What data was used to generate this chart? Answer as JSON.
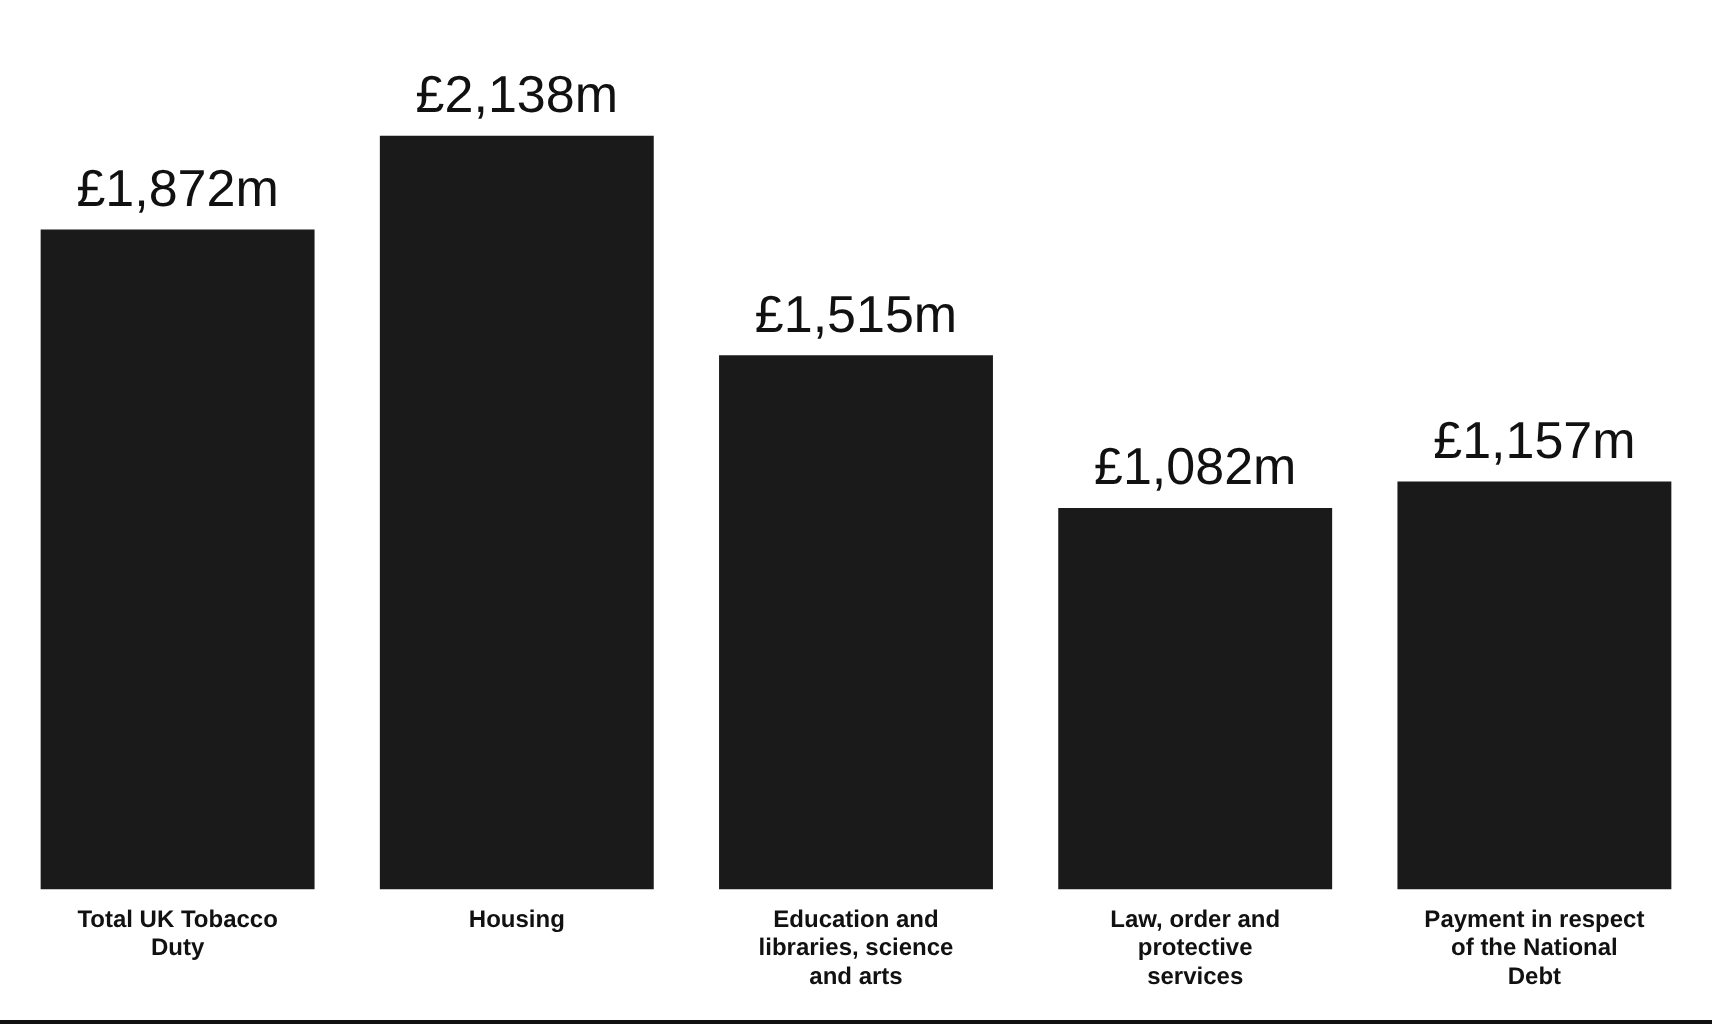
{
  "chart_data": {
    "type": "bar",
    "categories": [
      "Total UK Tobacco Duty",
      "Housing",
      "Education and libraries, science and arts",
      "Law, order and protective services",
      "Payment in respect of the National Debt"
    ],
    "values": [
      1872,
      2138,
      1515,
      1082,
      1157
    ],
    "value_labels": [
      "£1,872m",
      "£2,138m",
      "£1,515m",
      "£1,082m",
      "£1,157m"
    ],
    "color": "#1a1a1a",
    "grid": false,
    "legend": false
  }
}
